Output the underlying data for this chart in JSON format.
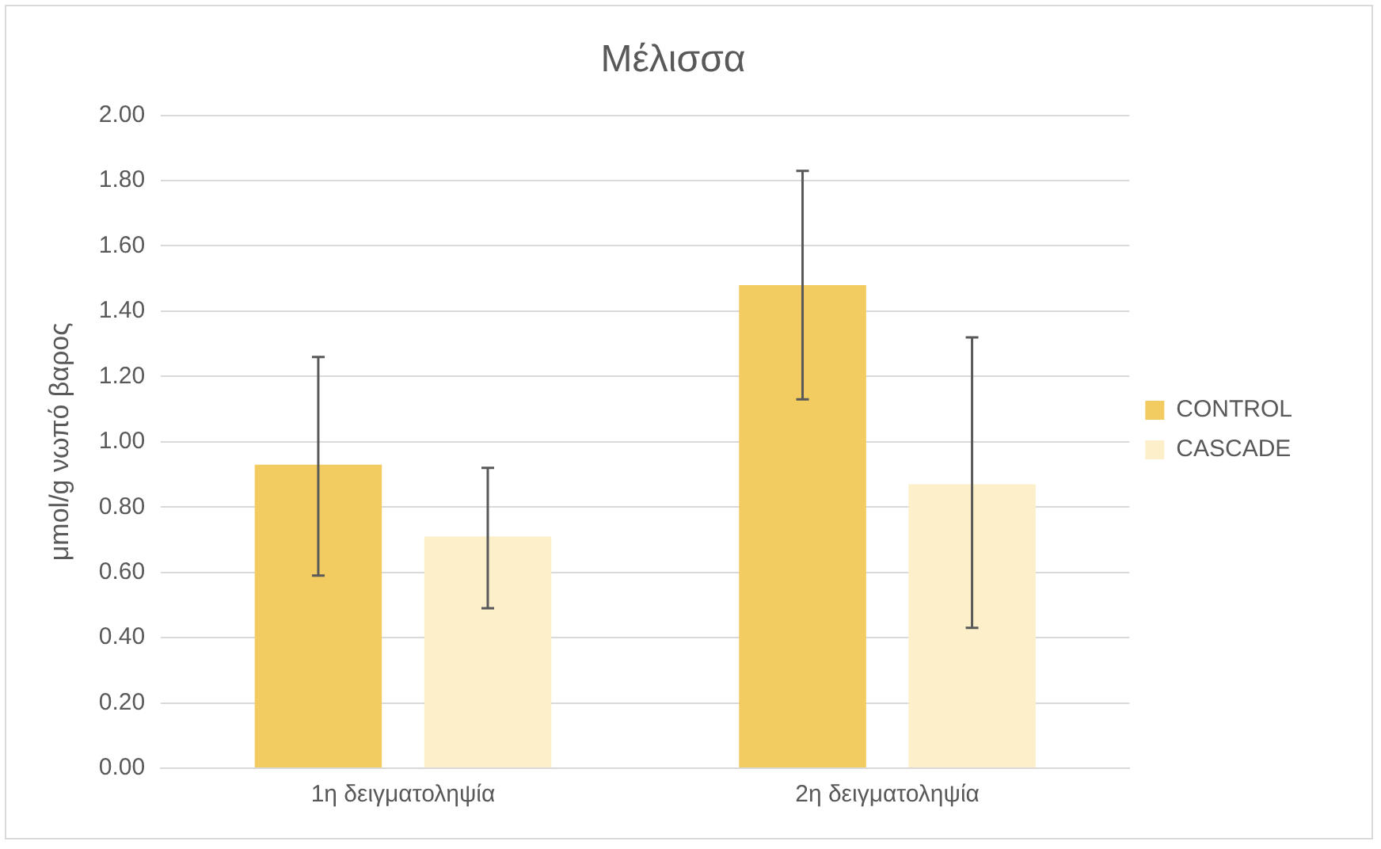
{
  "chart_data": {
    "type": "bar",
    "title": "Μέλισσα",
    "ylabel": "μmol/g νωπό βαρος",
    "categories": [
      "1η δειγματοληψία",
      "2η δειγματοληψία"
    ],
    "series": [
      {
        "name": "CONTROL",
        "color": "#f2cc60",
        "values": [
          0.93,
          1.48
        ],
        "errors": [
          [
            0.59,
            1.26
          ],
          [
            1.13,
            1.83
          ]
        ]
      },
      {
        "name": "CASCADE",
        "color": "#fcefc9",
        "values": [
          0.71,
          0.87
        ],
        "errors": [
          [
            0.49,
            0.92
          ],
          [
            0.43,
            1.32
          ]
        ]
      }
    ],
    "ylim": [
      0,
      2
    ],
    "yticks": [
      {
        "value": 0,
        "label": "0.00"
      },
      {
        "value": 0.2,
        "label": "0.20"
      },
      {
        "value": 0.4,
        "label": "0.40"
      },
      {
        "value": 0.6,
        "label": "0.60"
      },
      {
        "value": 0.8,
        "label": "0.80"
      },
      {
        "value": 1,
        "label": "1.00"
      },
      {
        "value": 1.2,
        "label": "1.20"
      },
      {
        "value": 1.4,
        "label": "1.40"
      },
      {
        "value": 1.6,
        "label": "1.60"
      },
      {
        "value": 1.8,
        "label": "1.80"
      },
      {
        "value": 2,
        "label": "2.00"
      }
    ],
    "grid": "y",
    "legend": "right"
  }
}
